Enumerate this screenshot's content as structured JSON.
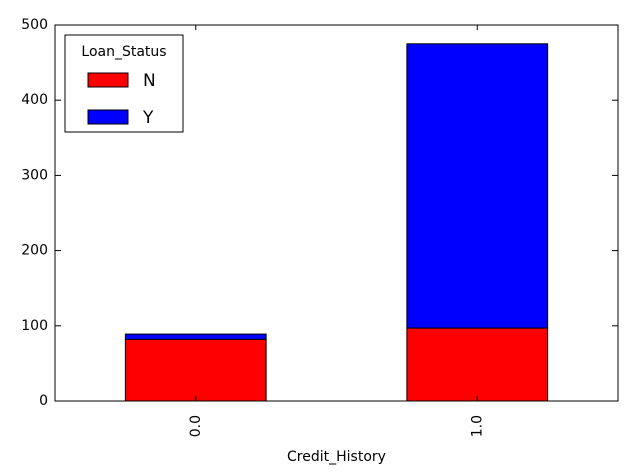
{
  "chart_data": {
    "type": "bar",
    "stacked": true,
    "categories": [
      "0.0",
      "1.0"
    ],
    "series": [
      {
        "name": "N",
        "values": [
          82,
          97
        ],
        "color": "#ff0000"
      },
      {
        "name": "Y",
        "values": [
          7,
          378
        ],
        "color": "#0000ff"
      }
    ],
    "title": "",
    "xlabel": "Credit_History",
    "ylabel": "",
    "ylim": [
      0,
      500
    ],
    "yticks": [
      0,
      100,
      200,
      300,
      400,
      500
    ],
    "grid": false,
    "legend": {
      "title": "Loan_Status",
      "position": "top-left"
    }
  }
}
